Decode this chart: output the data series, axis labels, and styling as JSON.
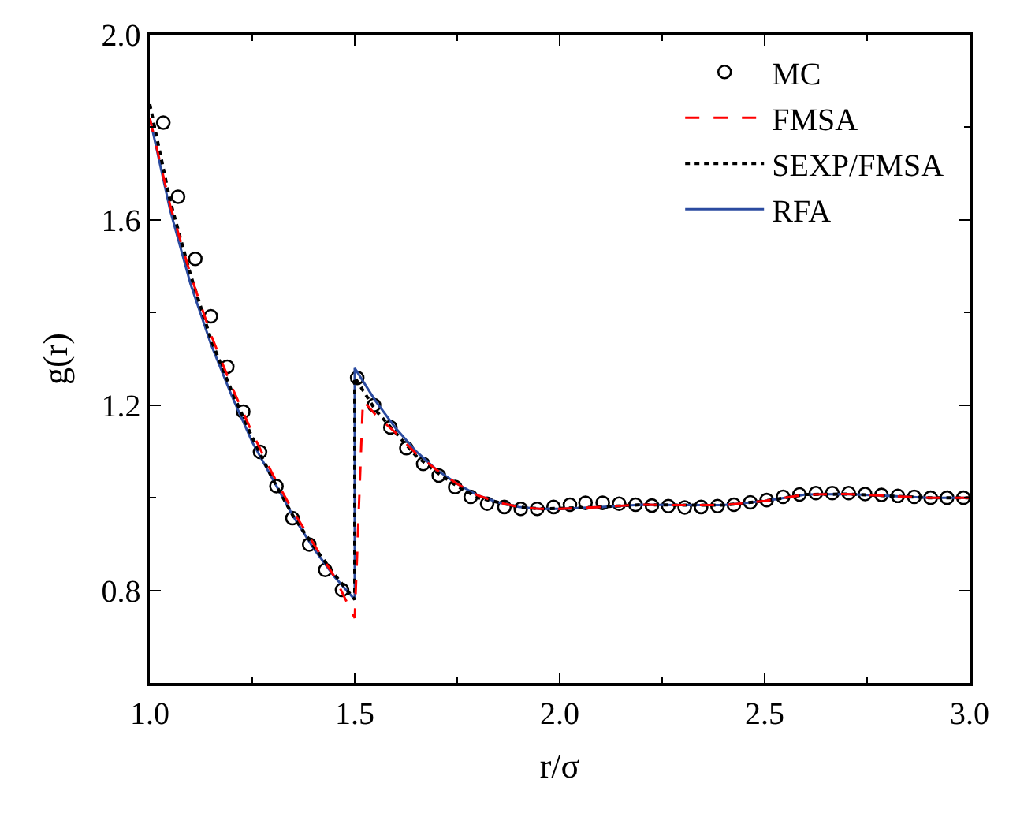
{
  "chart_data": {
    "type": "line",
    "xlabel": "r/σ",
    "ylabel": "g(r)",
    "xlim": [
      1.0,
      3.0
    ],
    "ylim": [
      0.6,
      2.0
    ],
    "xticks": [
      {
        "value": 1.0,
        "label": "1.0"
      },
      {
        "value": 1.25,
        "label": null
      },
      {
        "value": 1.5,
        "label": "1.5"
      },
      {
        "value": 1.75,
        "label": null
      },
      {
        "value": 2.0,
        "label": "2.0"
      },
      {
        "value": 2.25,
        "label": null
      },
      {
        "value": 2.5,
        "label": "2.5"
      },
      {
        "value": 2.75,
        "label": null
      },
      {
        "value": 3.0,
        "label": "3.0"
      }
    ],
    "yticks": [
      {
        "value": 0.6,
        "label": null
      },
      0.8,
      {
        "value": 1.0,
        "label": null
      },
      1.2,
      {
        "value": 1.4,
        "label": null
      },
      1.6,
      {
        "value": 1.8,
        "label": null
      },
      {
        "value": 2.0,
        "label": "2.0"
      }
    ],
    "grid": false,
    "legend": "top right",
    "series": [
      {
        "name": "MC",
        "type": "scatter",
        "marker": "circle",
        "color": "#000000",
        "x": [
          1.033,
          1.069,
          1.111,
          1.149,
          1.189,
          1.228,
          1.269,
          1.309,
          1.348,
          1.389,
          1.428,
          1.469,
          1.506,
          1.547,
          1.587,
          1.626,
          1.667,
          1.705,
          1.745,
          1.783,
          1.823,
          1.865,
          1.905,
          1.945,
          1.985,
          2.025,
          2.063,
          2.105,
          2.145,
          2.185,
          2.225,
          2.265,
          2.305,
          2.345,
          2.385,
          2.425,
          2.465,
          2.505,
          2.545,
          2.585,
          2.625,
          2.665,
          2.705,
          2.745,
          2.785,
          2.825,
          2.865,
          2.905,
          2.945,
          2.985
        ],
        "values": [
          1.81,
          1.65,
          1.516,
          1.392,
          1.283,
          1.186,
          1.099,
          1.025,
          0.956,
          0.899,
          0.844,
          0.801,
          1.259,
          1.2,
          1.152,
          1.107,
          1.073,
          1.048,
          1.023,
          1.002,
          0.987,
          0.98,
          0.976,
          0.976,
          0.98,
          0.985,
          0.989,
          0.989,
          0.987,
          0.985,
          0.983,
          0.982,
          0.979,
          0.98,
          0.982,
          0.985,
          0.99,
          0.995,
          1.002,
          1.007,
          1.01,
          1.01,
          1.01,
          1.008,
          1.006,
          1.004,
          1.002,
          1.0,
          1.0,
          1.0
        ]
      },
      {
        "name": "FMSA",
        "line_style": "dashed",
        "color": "#ff0000",
        "x": [
          1.0,
          1.05,
          1.1,
          1.15,
          1.2,
          1.25,
          1.3,
          1.35,
          1.4,
          1.45,
          1.5,
          1.52,
          1.55,
          1.6,
          1.65,
          1.7,
          1.75,
          1.8,
          1.85,
          1.9,
          1.95,
          2.0,
          2.1,
          2.2,
          2.3,
          2.4,
          2.5,
          2.6,
          2.7,
          2.8,
          2.9,
          3.0
        ],
        "values": [
          1.82,
          1.63,
          1.48,
          1.35,
          1.24,
          1.14,
          1.05,
          0.97,
          0.9,
          0.83,
          0.74,
          1.21,
          1.18,
          1.14,
          1.095,
          1.06,
          1.03,
          1.005,
          0.99,
          0.98,
          0.976,
          0.976,
          0.98,
          0.985,
          0.984,
          0.984,
          0.993,
          1.007,
          1.008,
          1.004,
          1.0,
          1.0
        ]
      },
      {
        "name": "SEXP/FMSA",
        "line_style": "dotted",
        "color": "#000000",
        "x": [
          1.0,
          1.05,
          1.1,
          1.15,
          1.2,
          1.25,
          1.3,
          1.35,
          1.4,
          1.45,
          1.5,
          1.5,
          1.55,
          1.6,
          1.65,
          1.7,
          1.75,
          1.8,
          1.85,
          1.9,
          1.95,
          2.0,
          2.1,
          2.2,
          2.3,
          2.4,
          2.5,
          2.6,
          2.7,
          2.8,
          2.9,
          3.0
        ],
        "values": [
          1.85,
          1.64,
          1.48,
          1.34,
          1.23,
          1.13,
          1.04,
          0.96,
          0.895,
          0.835,
          0.78,
          1.26,
          1.19,
          1.14,
          1.09,
          1.055,
          1.025,
          1.0,
          0.99,
          0.98,
          0.976,
          0.977,
          0.98,
          0.985,
          0.984,
          0.984,
          0.993,
          1.007,
          1.008,
          1.004,
          1.0,
          1.0
        ]
      },
      {
        "name": "RFA",
        "line_style": "solid",
        "color": "#2b4ba0",
        "x": [
          1.0,
          1.05,
          1.1,
          1.15,
          1.2,
          1.25,
          1.3,
          1.35,
          1.4,
          1.45,
          1.5,
          1.5,
          1.55,
          1.6,
          1.65,
          1.7,
          1.75,
          1.8,
          1.85,
          1.9,
          1.95,
          2.0,
          2.1,
          2.2,
          2.3,
          2.4,
          2.5,
          2.6,
          2.7,
          2.8,
          2.9,
          3.0
        ],
        "values": [
          1.82,
          1.62,
          1.46,
          1.33,
          1.22,
          1.12,
          1.04,
          0.96,
          0.89,
          0.83,
          0.78,
          1.28,
          1.21,
          1.15,
          1.1,
          1.06,
          1.03,
          1.005,
          0.99,
          0.98,
          0.976,
          0.976,
          0.98,
          0.985,
          0.984,
          0.984,
          0.993,
          1.007,
          1.008,
          1.004,
          1.0,
          1.0
        ]
      }
    ]
  }
}
